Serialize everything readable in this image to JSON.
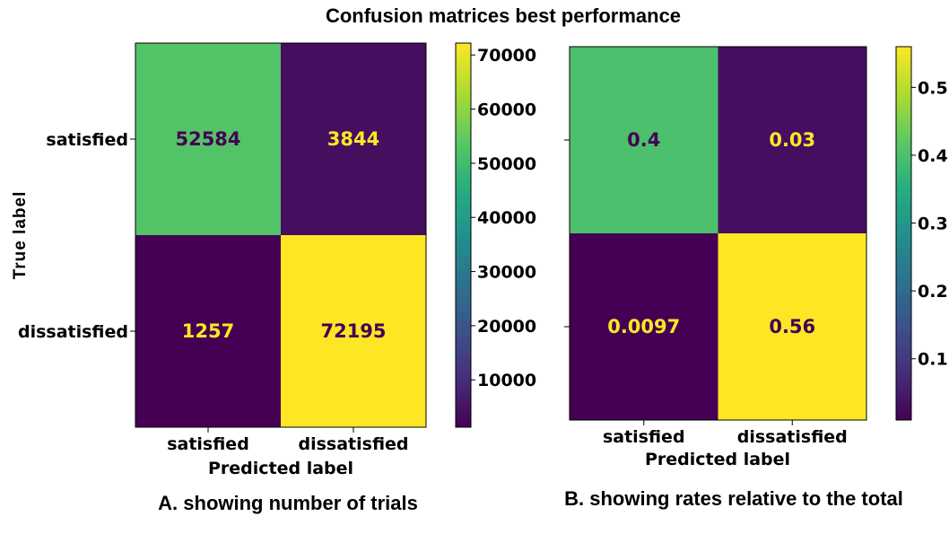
{
  "figure": {
    "title": "Confusion matrices best performance",
    "colormap": "viridis"
  },
  "chart_data": [
    {
      "type": "heatmap",
      "caption": "A. showing number of trials",
      "xlabel": "Predicted label",
      "ylabel": "True label",
      "x_categories": [
        "satisfied",
        "dissatisfied"
      ],
      "y_categories": [
        "satisfied",
        "dissatisfied"
      ],
      "values": [
        [
          52584,
          3844
        ],
        [
          1257,
          72195
        ]
      ],
      "cell_labels": [
        [
          "52584",
          "3844"
        ],
        [
          "1257",
          "72195"
        ]
      ],
      "colorbar": {
        "range": [
          1257,
          72195
        ],
        "ticks": [
          10000,
          20000,
          30000,
          40000,
          50000,
          60000,
          70000
        ],
        "tick_labels": [
          "10000",
          "20000",
          "30000",
          "40000",
          "50000",
          "60000",
          "70000"
        ]
      }
    },
    {
      "type": "heatmap",
      "caption": "B. showing rates relative to the total",
      "xlabel": "Predicted label",
      "ylabel": "",
      "x_categories": [
        "satisfied",
        "dissatisfied"
      ],
      "y_categories": [
        "satisfied",
        "dissatisfied"
      ],
      "values": [
        [
          0.4,
          0.03
        ],
        [
          0.0097,
          0.56
        ]
      ],
      "cell_labels": [
        [
          "0.4",
          "0.03"
        ],
        [
          "0.0097",
          "0.56"
        ]
      ],
      "colorbar": {
        "range": [
          0.0097,
          0.56
        ],
        "ticks": [
          0.1,
          0.2,
          0.3,
          0.4,
          0.5
        ],
        "tick_labels": [
          "0.1",
          "0.2",
          "0.3",
          "0.4",
          "0.5"
        ]
      }
    }
  ]
}
